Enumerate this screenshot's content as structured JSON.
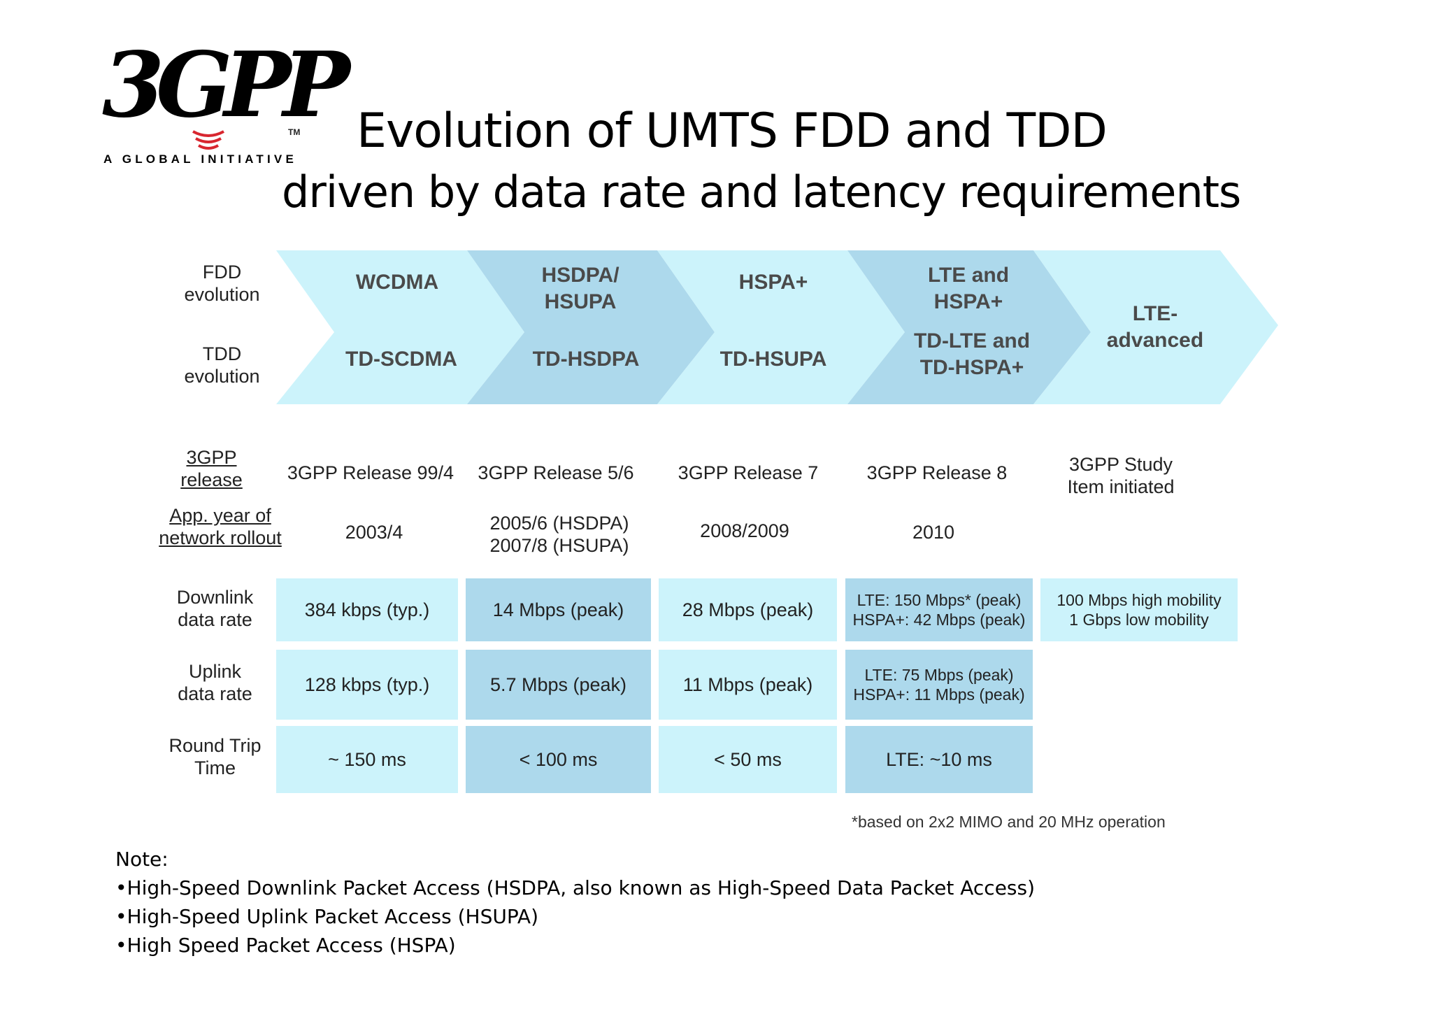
{
  "logo": {
    "mark": "3GPP",
    "tm": "TM",
    "tagline": "A GLOBAL INITIATIVE"
  },
  "title": {
    "line1": "Evolution of UMTS FDD and TDD",
    "line2": "driven by data rate and latency requirements"
  },
  "rows": {
    "fdd": "FDD evolution",
    "tdd": "TDD evolution",
    "release": "3GPP release",
    "rollout": "App. year of network rollout",
    "downlink": "Downlink data rate",
    "uplink": "Uplink data rate",
    "rtt": "Round Trip Time"
  },
  "stages": [
    {
      "fdd": "WCDMA",
      "tdd": "TD-SCDMA",
      "release": "3GPP Release 99/4",
      "rollout": "2003/4",
      "downlink": "384 kbps (typ.)",
      "uplink": "128 kbps (typ.)",
      "rtt": "~ 150 ms"
    },
    {
      "fdd": "HSDPA/ HSUPA",
      "tdd": "TD-HSDPA",
      "release": "3GPP Release 5/6",
      "rollout": "2005/6 (HSDPA) 2007/8 (HSUPA)",
      "downlink": "14 Mbps (peak)",
      "uplink": "5.7 Mbps (peak)",
      "rtt": "< 100 ms"
    },
    {
      "fdd": "HSPA+",
      "tdd": "TD-HSUPA",
      "release": "3GPP Release 7",
      "rollout": "2008/2009",
      "downlink": "28 Mbps (peak)",
      "uplink": "11 Mbps (peak)",
      "rtt": "< 50 ms"
    },
    {
      "fdd": "LTE and HSPA+",
      "tdd": "TD-LTE and TD-HSPA+",
      "release": "3GPP Release 8",
      "rollout": "2010",
      "downlink": "LTE: 150 Mbps* (peak) HSPA+: 42 Mbps (peak)",
      "uplink": "LTE: 75 Mbps (peak) HSPA+: 11 Mbps (peak)",
      "rtt": "LTE: ~10 ms"
    },
    {
      "combined": "LTE- advanced",
      "release": "3GPP Study Item initiated",
      "downlink": "100 Mbps high mobility 1 Gbps low mobility"
    }
  ],
  "footnote": "*based on 2x2 MIMO and 20 MHz operation",
  "notes": {
    "heading": "Note:",
    "items": [
      "•High-Speed Downlink Packet Access (HSDPA, also known as High-Speed Data Packet Access)",
      "•High-Speed Uplink Packet Access (HSUPA)",
      "•High Speed Packet Access (HSPA)"
    ]
  },
  "colors": {
    "light": "#ccf3fb",
    "dark": "#add9ec",
    "logo_red": "#d8262f"
  }
}
